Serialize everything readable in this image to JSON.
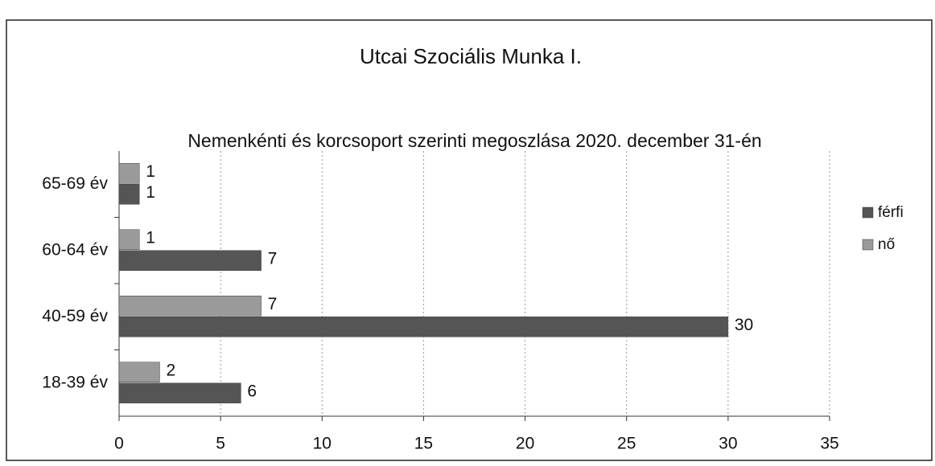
{
  "chart_data": {
    "type": "hbar",
    "title": "Utcai Szociális Munka I.",
    "subtitle": "Nemenkénti és korcsoport szerinti megoszlása 2020. december 31-én",
    "categories": [
      "65-69 év",
      "60-64 év",
      "40-59 év",
      "18-39 év"
    ],
    "series": [
      {
        "name": "nő",
        "color": "#9a9a9a",
        "values": [
          1,
          1,
          7,
          2
        ]
      },
      {
        "name": "férfi",
        "color": "#555555",
        "values": [
          1,
          7,
          30,
          6
        ]
      }
    ],
    "legend_order": [
      1,
      0
    ],
    "xlim": [
      0,
      35
    ],
    "xticks": [
      0,
      5,
      10,
      15,
      20,
      25,
      30,
      35
    ],
    "grid": true
  }
}
